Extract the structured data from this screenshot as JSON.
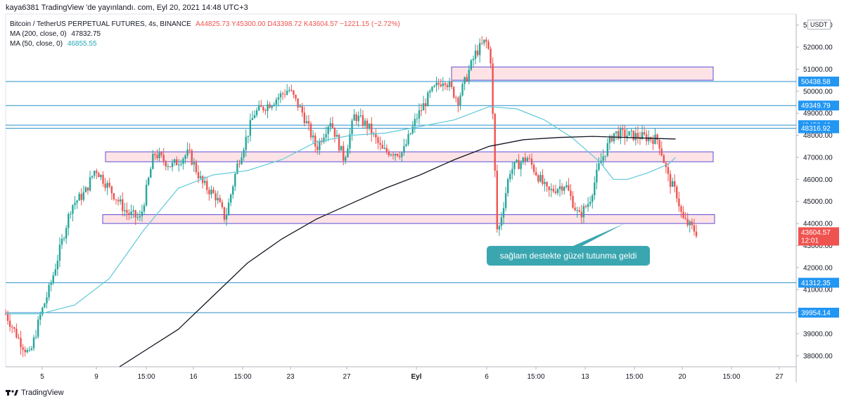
{
  "header": {
    "published": "kaya6381 TradingView 'de yayınlandı. com, Eyl 20, 2021 14:48 UTC+3"
  },
  "legend": {
    "symbol": "Bitcoin / TetherUS PERPETUAL FUTURES, 4s, BINANCE",
    "ohlc": "A44825.73 Y45300.00 D43398.72 K43604.57 −1221.15 (−2.72%)",
    "ma200_label": "MA (200, close, 0)",
    "ma200_value": "47832.75",
    "ma50_label": "MA (50, close, 0)",
    "ma50_value": "46855.55"
  },
  "currency": "USDT",
  "callout": {
    "text": "sağlam destekte güzel tutunma geldi"
  },
  "footer": {
    "brand": "TradingView"
  },
  "colors": {
    "up": "#26a69a",
    "down": "#ef5350",
    "ma50": "#5ec8d8",
    "ma200": "#131722",
    "hline": "#2a8fc9",
    "zone_fill": "#fde3e6",
    "zone_border": "#5c4ed6",
    "badge_blue": "#2196f3",
    "badge_red": "#ef5350",
    "callout": "#3aa6b0"
  },
  "chart_data": {
    "type": "candlestick",
    "y_axis": {
      "min": 37500,
      "max": 53500,
      "ticks": [
        "38000.00",
        "39000.00",
        "40000.00",
        "41000.00",
        "42000.00",
        "43000.00",
        "44000.00",
        "45000.00",
        "46000.00",
        "47000.00",
        "48000.00",
        "49000.00",
        "50000.00",
        "51000.00",
        "52000.00",
        "53000.00"
      ]
    },
    "x_axis": {
      "ticks": [
        "5",
        "9",
        "15:00",
        "16",
        "15:00",
        "23",
        "27",
        "Eyl",
        "6",
        "15:00",
        "13",
        "15:00",
        "20",
        "15:00",
        "27"
      ]
    },
    "horizontal_lines": [
      {
        "price": 50438.58,
        "label": "50438.58"
      },
      {
        "price": 49349.79,
        "label": "49349.79"
      },
      {
        "price": 48459.46,
        "label": "48459.46"
      },
      {
        "price": 48316.92,
        "label": "48316.92"
      },
      {
        "price": 41312.35,
        "label": "41312.35"
      },
      {
        "price": 39954.14,
        "label": "39954.14"
      }
    ],
    "last_price": {
      "label": "43604.57",
      "countdown": "12:01"
    },
    "zones": [
      {
        "from": 50500,
        "to": 51100
      },
      {
        "from": 46800,
        "to": 47250
      },
      {
        "from": 44000,
        "to": 44400
      }
    ],
    "anchors": [
      [
        0,
        39900
      ],
      [
        0.02,
        38700
      ],
      [
        0.035,
        38000
      ],
      [
        0.05,
        39800
      ],
      [
        0.065,
        41200
      ],
      [
        0.08,
        43000
      ],
      [
        0.095,
        44800
      ],
      [
        0.115,
        45400
      ],
      [
        0.13,
        46500
      ],
      [
        0.15,
        45600
      ],
      [
        0.175,
        44500
      ],
      [
        0.195,
        44200
      ],
      [
        0.215,
        47200
      ],
      [
        0.24,
        46600
      ],
      [
        0.265,
        47200
      ],
      [
        0.285,
        45800
      ],
      [
        0.305,
        45200
      ],
      [
        0.318,
        44200
      ],
      [
        0.335,
        46600
      ],
      [
        0.36,
        49000
      ],
      [
        0.385,
        49500
      ],
      [
        0.41,
        50100
      ],
      [
        0.43,
        49000
      ],
      [
        0.45,
        47400
      ],
      [
        0.47,
        48700
      ],
      [
        0.49,
        46900
      ],
      [
        0.505,
        48900
      ],
      [
        0.525,
        48400
      ],
      [
        0.545,
        47300
      ],
      [
        0.575,
        47200
      ],
      [
        0.595,
        48800
      ],
      [
        0.615,
        49900
      ],
      [
        0.635,
        50600
      ],
      [
        0.655,
        49600
      ],
      [
        0.68,
        51700
      ],
      [
        0.695,
        52300
      ],
      [
        0.702,
        51600
      ],
      [
        0.712,
        43400
      ],
      [
        0.73,
        46400
      ],
      [
        0.755,
        47000
      ],
      [
        0.785,
        45400
      ],
      [
        0.81,
        45800
      ],
      [
        0.83,
        44300
      ],
      [
        0.845,
        45000
      ],
      [
        0.86,
        46700
      ],
      [
        0.88,
        48100
      ],
      [
        0.905,
        48000
      ],
      [
        0.93,
        47900
      ],
      [
        0.945,
        47800
      ],
      [
        0.96,
        46000
      ],
      [
        0.972,
        45300
      ],
      [
        0.98,
        44200
      ],
      [
        1.0,
        43604.57
      ]
    ],
    "ma50": [
      [
        0,
        39900
      ],
      [
        0.05,
        39900
      ],
      [
        0.1,
        40300
      ],
      [
        0.15,
        41500
      ],
      [
        0.2,
        43700
      ],
      [
        0.25,
        45600
      ],
      [
        0.3,
        46200
      ],
      [
        0.35,
        46400
      ],
      [
        0.4,
        46900
      ],
      [
        0.45,
        47700
      ],
      [
        0.5,
        48000
      ],
      [
        0.55,
        48100
      ],
      [
        0.6,
        48400
      ],
      [
        0.65,
        48700
      ],
      [
        0.7,
        49300
      ],
      [
        0.74,
        49200
      ],
      [
        0.78,
        48700
      ],
      [
        0.82,
        47900
      ],
      [
        0.86,
        46800
      ],
      [
        0.88,
        46000
      ],
      [
        0.9,
        46000
      ],
      [
        0.93,
        46300
      ],
      [
        0.96,
        46700
      ],
      [
        0.97,
        47000
      ]
    ],
    "ma200": [
      [
        0.165,
        37500
      ],
      [
        0.2,
        38200
      ],
      [
        0.25,
        39200
      ],
      [
        0.3,
        40700
      ],
      [
        0.35,
        42200
      ],
      [
        0.4,
        43300
      ],
      [
        0.45,
        44200
      ],
      [
        0.5,
        44900
      ],
      [
        0.55,
        45600
      ],
      [
        0.6,
        46200
      ],
      [
        0.65,
        46900
      ],
      [
        0.7,
        47500
      ],
      [
        0.75,
        47800
      ],
      [
        0.8,
        47900
      ],
      [
        0.85,
        47950
      ],
      [
        0.9,
        47900
      ],
      [
        0.95,
        47850
      ],
      [
        0.97,
        47832.75
      ]
    ]
  }
}
